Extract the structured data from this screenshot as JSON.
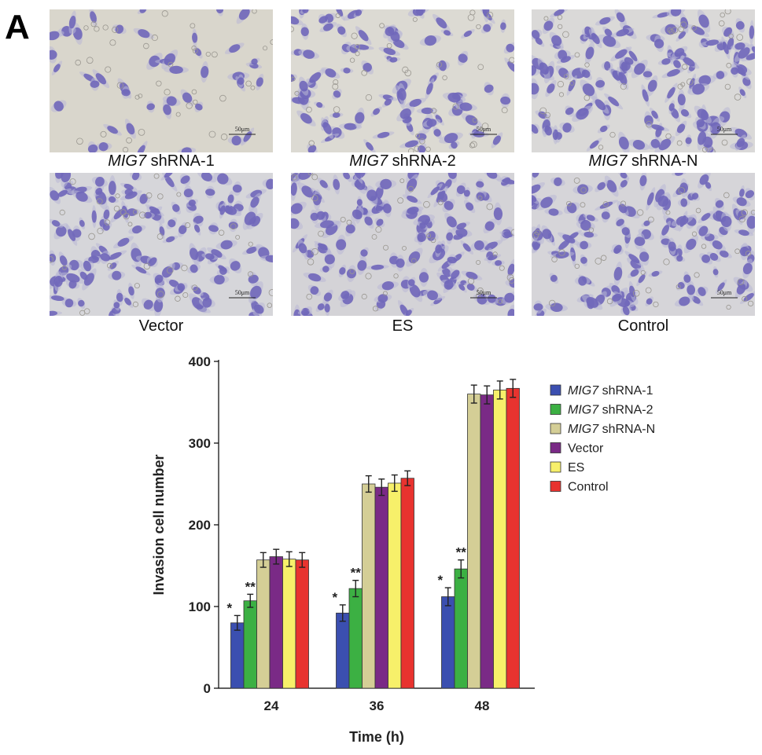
{
  "panel": {
    "letter": "A"
  },
  "micrographs": [
    {
      "name_italic": "MIG7",
      "name_rest": " shRNA-1",
      "scale_bar": "50μm"
    },
    {
      "name_italic": "MIG7",
      "name_rest": " shRNA-2",
      "scale_bar": "50μm"
    },
    {
      "name_italic": "MIG7",
      "name_rest": " shRNA-N",
      "scale_bar": "50μm"
    },
    {
      "name_italic": "",
      "name_rest": "Vector",
      "scale_bar": "50μm"
    },
    {
      "name_italic": "",
      "name_rest": "ES",
      "scale_bar": "50μm"
    },
    {
      "name_italic": "",
      "name_rest": "Control",
      "scale_bar": "50μm"
    }
  ],
  "chart_data": {
    "type": "bar",
    "title": "",
    "xlabel": "Time (h)",
    "ylabel": "Invasion cell number",
    "categories": [
      "24",
      "36",
      "48"
    ],
    "ylim": [
      0,
      400
    ],
    "yticks": [
      "0",
      "100",
      "200",
      "300",
      "400"
    ],
    "grid": false,
    "legend_position": "top-right",
    "series": [
      {
        "name_italic": "MIG7",
        "name_rest": " shRNA-1",
        "color": "#3b4fb0",
        "values": [
          80,
          92,
          112
        ],
        "errors": [
          9,
          10,
          11
        ],
        "marks": [
          "*",
          "*",
          "*"
        ]
      },
      {
        "name_italic": "MIG7",
        "name_rest": " shRNA-2",
        "color": "#3cb043",
        "values": [
          107,
          122,
          146
        ],
        "errors": [
          8,
          10,
          11
        ],
        "marks": [
          "**",
          "**",
          "**"
        ]
      },
      {
        "name_italic": "MIG7",
        "name_rest": " shRNA-N",
        "color": "#d4ce96",
        "values": [
          157,
          250,
          360
        ],
        "errors": [
          9,
          10,
          11
        ],
        "marks": [
          "",
          "",
          ""
        ]
      },
      {
        "name_italic": "",
        "name_rest": "Vector",
        "color": "#7a2a86",
        "values": [
          161,
          246,
          359
        ],
        "errors": [
          9,
          10,
          11
        ],
        "marks": [
          "",
          "",
          ""
        ]
      },
      {
        "name_italic": "",
        "name_rest": "ES",
        "color": "#f7f06a",
        "values": [
          158,
          251,
          365
        ],
        "errors": [
          9,
          10,
          11
        ],
        "marks": [
          "",
          "",
          ""
        ]
      },
      {
        "name_italic": "",
        "name_rest": "Control",
        "color": "#e8332f",
        "values": [
          157,
          257,
          367
        ],
        "errors": [
          9,
          9,
          11
        ],
        "marks": [
          "",
          "",
          ""
        ]
      }
    ]
  }
}
